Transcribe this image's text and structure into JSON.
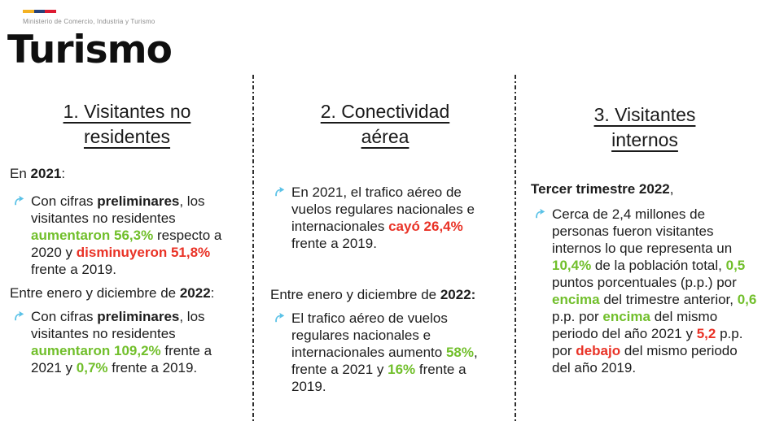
{
  "colors": {
    "green": "#71BF2B",
    "red": "#E93226",
    "arrow_blue": "#5BC2E7",
    "flag_yellow": "#F4B223",
    "flag_blue": "#26427A",
    "flag_red": "#DD1A32",
    "text": "#1d1d1d",
    "ministry_gray": "#8d8d8d"
  },
  "header": {
    "ministry": "Ministerio de Comercio, Industria y Turismo",
    "title": "Turismo"
  },
  "columns": [
    {
      "heading": "1. Visitantes no residentes",
      "sections": [
        {
          "subtitle": [
            {
              "t": "En "
            },
            {
              "t": "2021",
              "s": "b"
            },
            {
              "t": ":"
            }
          ],
          "bullets": [
            [
              {
                "t": "Con cifras "
              },
              {
                "t": "preliminares",
                "s": "b"
              },
              {
                "t": ", los visitantes no residentes "
              },
              {
                "t": "aumentaron 56,3%",
                "s": "g"
              },
              {
                "t": " respecto a 2020 y "
              },
              {
                "t": "disminuyeron 51,8%",
                "s": "r"
              },
              {
                "t": " frente a 2019."
              }
            ]
          ]
        },
        {
          "subtitle": [
            {
              "t": "Entre enero y diciembre de "
            },
            {
              "t": "2022",
              "s": "b"
            },
            {
              "t": ":"
            }
          ],
          "bullets": [
            [
              {
                "t": "Con cifras "
              },
              {
                "t": "preliminares",
                "s": "b"
              },
              {
                "t": ", los visitantes no residentes "
              },
              {
                "t": "aumentaron 109,2%",
                "s": "g"
              },
              {
                "t": "  frente a 2021 y "
              },
              {
                "t": "0,7%",
                "s": "g"
              },
              {
                "t": " frente a 2019."
              }
            ]
          ]
        }
      ]
    },
    {
      "heading": "2. Conectividad aérea",
      "sections": [
        {
          "subtitle": null,
          "bullets": [
            [
              {
                "t": "En 2021, el trafico aéreo de vuelos regulares nacionales e internacionales "
              },
              {
                "t": "cayó 26,4%",
                "s": "r"
              },
              {
                "t": " frente a 2019."
              }
            ]
          ]
        },
        {
          "subtitle": [
            {
              "t": "Entre enero y diciembre de "
            },
            {
              "t": "2022:",
              "s": "b"
            }
          ],
          "bullets": [
            [
              {
                "t": "El trafico aéreo de vuelos regulares nacionales e internacionales aumento "
              },
              {
                "t": "58%",
                "s": "g"
              },
              {
                "t": ", frente a 2021 y "
              },
              {
                "t": "16%",
                "s": "g"
              },
              {
                "t": " frente a 2019."
              }
            ]
          ]
        }
      ]
    },
    {
      "heading": "3. Visitantes internos",
      "sections": [
        {
          "subtitle": [
            {
              "t": "Tercer trimestre 2022",
              "s": "b"
            },
            {
              "t": ","
            }
          ],
          "bullets": [
            [
              {
                "t": "Cerca de 2,4 millones de personas fueron visitantes internos lo que representa un "
              },
              {
                "t": "10,4%",
                "s": "g"
              },
              {
                "t": " de la población total, "
              },
              {
                "t": "0,5",
                "s": "g"
              },
              {
                "t": " puntos porcentuales (p.p.) por "
              },
              {
                "t": "encima",
                "s": "g"
              },
              {
                "t": " del trimestre anterior, "
              },
              {
                "t": "0,6",
                "s": "g"
              },
              {
                "t": " p.p. por "
              },
              {
                "t": "encima",
                "s": "g"
              },
              {
                "t": " del mismo periodo del año 2021 y "
              },
              {
                "t": "5,2",
                "s": "r"
              },
              {
                "t": " p.p. por "
              },
              {
                "t": "debajo",
                "s": "r"
              },
              {
                "t": " del mismo periodo del año 2019."
              }
            ]
          ]
        }
      ]
    }
  ],
  "icons": {
    "bullet": "curved-arrow-icon",
    "flag": "colombia-flag-icon"
  }
}
